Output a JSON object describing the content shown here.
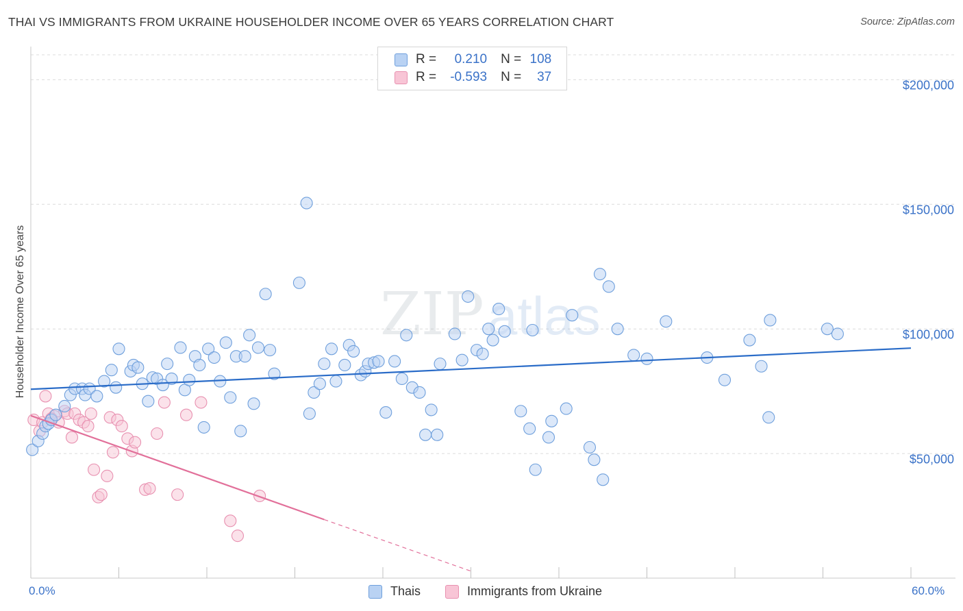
{
  "title": "THAI VS IMMIGRANTS FROM UKRAINE HOUSEHOLDER INCOME OVER 65 YEARS CORRELATION CHART",
  "source": "Source: ZipAtlas.com",
  "watermark": {
    "zip": "ZIP",
    "atlas": "atlas"
  },
  "legend": {
    "r_label": "R =",
    "n_label": "N =",
    "rows": [
      {
        "r": "0.210",
        "n": "108",
        "fill": "#b9d2f3",
        "stroke": "#6e9fdc"
      },
      {
        "r": "-0.593",
        "n": "37",
        "fill": "#f8c5d6",
        "stroke": "#e890b0"
      }
    ]
  },
  "series_legend": [
    {
      "label": "Thais",
      "fill": "#b9d2f3",
      "stroke": "#6e9fdc"
    },
    {
      "label": "Immigrants from Ukraine",
      "fill": "#f8c5d6",
      "stroke": "#e890b0"
    }
  ],
  "chart_data": {
    "type": "scatter",
    "title": "THAI VS IMMIGRANTS FROM UKRAINE HOUSEHOLDER INCOME OVER 65 YEARS CORRELATION CHART",
    "xlabel": "",
    "ylabel": "Householder Income Over 65 years",
    "xlim": [
      0,
      60
    ],
    "ylim": [
      0,
      210000
    ],
    "x_tick_labels": [
      "0.0%",
      "60.0%"
    ],
    "y_ticks": [
      {
        "value": 50000,
        "label": "$50,000"
      },
      {
        "value": 100000,
        "label": "$100,000"
      },
      {
        "value": 150000,
        "label": "$150,000"
      },
      {
        "value": 200000,
        "label": "$200,000"
      }
    ],
    "grid": true,
    "colors": {
      "thais": "#6e9fdc",
      "thais_line": "#2a6cc8",
      "ukraine": "#e890b0",
      "ukraine_line": "#e2709a"
    },
    "series": [
      {
        "name": "Thais",
        "r": 0.21,
        "n": 108,
        "trend": {
          "x0": 0,
          "y0": 75800,
          "x1": 60,
          "y1": 92300
        },
        "points": [
          [
            0.1,
            51500
          ],
          [
            0.5,
            55000
          ],
          [
            0.8,
            58000
          ],
          [
            1.0,
            61000
          ],
          [
            1.2,
            62000
          ],
          [
            1.4,
            63500
          ],
          [
            1.7,
            65500
          ],
          [
            2.3,
            69000
          ],
          [
            2.7,
            73500
          ],
          [
            3.0,
            76000
          ],
          [
            3.5,
            76000
          ],
          [
            3.7,
            73500
          ],
          [
            4.0,
            76000
          ],
          [
            4.5,
            73000
          ],
          [
            5.0,
            79000
          ],
          [
            5.5,
            83500
          ],
          [
            5.8,
            76500
          ],
          [
            6.0,
            92000
          ],
          [
            6.8,
            83000
          ],
          [
            7.0,
            85500
          ],
          [
            7.3,
            84500
          ],
          [
            7.6,
            78000
          ],
          [
            8.0,
            71000
          ],
          [
            8.3,
            80500
          ],
          [
            8.6,
            80000
          ],
          [
            9.0,
            77500
          ],
          [
            9.3,
            86000
          ],
          [
            9.6,
            80000
          ],
          [
            10.2,
            92500
          ],
          [
            10.5,
            75500
          ],
          [
            10.8,
            79500
          ],
          [
            11.2,
            89000
          ],
          [
            11.5,
            85500
          ],
          [
            11.8,
            60500
          ],
          [
            12.1,
            92000
          ],
          [
            12.5,
            88500
          ],
          [
            12.9,
            79000
          ],
          [
            13.3,
            94500
          ],
          [
            13.6,
            72500
          ],
          [
            14.0,
            89000
          ],
          [
            14.3,
            59000
          ],
          [
            14.6,
            89000
          ],
          [
            14.9,
            97500
          ],
          [
            15.2,
            70000
          ],
          [
            15.5,
            92500
          ],
          [
            16.0,
            114000
          ],
          [
            16.3,
            91500
          ],
          [
            16.6,
            82000
          ],
          [
            18.3,
            118500
          ],
          [
            18.8,
            150500
          ],
          [
            19.0,
            66000
          ],
          [
            19.3,
            74500
          ],
          [
            19.7,
            78000
          ],
          [
            20.0,
            86000
          ],
          [
            20.5,
            92000
          ],
          [
            20.8,
            79000
          ],
          [
            21.4,
            85500
          ],
          [
            21.7,
            93500
          ],
          [
            22.0,
            91000
          ],
          [
            22.5,
            81500
          ],
          [
            22.8,
            83000
          ],
          [
            23.0,
            86000
          ],
          [
            23.4,
            86500
          ],
          [
            23.7,
            87000
          ],
          [
            24.2,
            66500
          ],
          [
            24.8,
            87000
          ],
          [
            25.3,
            80000
          ],
          [
            25.6,
            97500
          ],
          [
            26.0,
            76500
          ],
          [
            26.5,
            74500
          ],
          [
            26.9,
            57500
          ],
          [
            27.3,
            67500
          ],
          [
            27.7,
            57500
          ],
          [
            27.9,
            86000
          ],
          [
            28.9,
            98000
          ],
          [
            29.4,
            87500
          ],
          [
            29.8,
            113000
          ],
          [
            30.4,
            91500
          ],
          [
            30.8,
            90000
          ],
          [
            31.2,
            100000
          ],
          [
            31.5,
            95500
          ],
          [
            31.9,
            108000
          ],
          [
            32.3,
            99000
          ],
          [
            33.4,
            67000
          ],
          [
            34.0,
            60000
          ],
          [
            34.2,
            99500
          ],
          [
            34.4,
            43500
          ],
          [
            35.3,
            56500
          ],
          [
            35.5,
            63000
          ],
          [
            36.5,
            68000
          ],
          [
            36.9,
            105500
          ],
          [
            38.1,
            52500
          ],
          [
            38.4,
            47500
          ],
          [
            38.8,
            122000
          ],
          [
            39.0,
            39500
          ],
          [
            39.4,
            117000
          ],
          [
            40.0,
            100000
          ],
          [
            41.1,
            89500
          ],
          [
            42.0,
            88000
          ],
          [
            43.3,
            103000
          ],
          [
            46.1,
            88500
          ],
          [
            47.3,
            79500
          ],
          [
            49.0,
            95500
          ],
          [
            49.8,
            85000
          ],
          [
            50.3,
            64500
          ],
          [
            50.4,
            103500
          ],
          [
            54.3,
            100000
          ],
          [
            55.0,
            98000
          ]
        ]
      },
      {
        "name": "Immigrants from Ukraine",
        "r": -0.593,
        "n": 37,
        "trend": {
          "x0": 0,
          "y0": 65200,
          "x1": 20.0,
          "y1": 23500,
          "dash_to_x": 30.0,
          "dash_to_y": 2800
        },
        "points": [
          [
            0.2,
            63500
          ],
          [
            0.6,
            59000
          ],
          [
            0.8,
            62500
          ],
          [
            1.0,
            73000
          ],
          [
            1.2,
            66000
          ],
          [
            1.6,
            65000
          ],
          [
            1.9,
            62500
          ],
          [
            2.3,
            67000
          ],
          [
            2.5,
            66000
          ],
          [
            2.8,
            56500
          ],
          [
            3.0,
            66000
          ],
          [
            3.3,
            63500
          ],
          [
            3.6,
            62500
          ],
          [
            3.9,
            61000
          ],
          [
            4.1,
            66000
          ],
          [
            4.3,
            43500
          ],
          [
            4.6,
            32500
          ],
          [
            4.8,
            33500
          ],
          [
            5.2,
            41000
          ],
          [
            5.4,
            64500
          ],
          [
            5.6,
            50500
          ],
          [
            5.9,
            63500
          ],
          [
            6.2,
            61000
          ],
          [
            6.6,
            56000
          ],
          [
            6.9,
            51000
          ],
          [
            7.1,
            54500
          ],
          [
            7.8,
            35500
          ],
          [
            8.1,
            36000
          ],
          [
            8.6,
            58000
          ],
          [
            9.1,
            70500
          ],
          [
            10.0,
            33500
          ],
          [
            10.6,
            65500
          ],
          [
            11.6,
            70500
          ],
          [
            13.6,
            23000
          ],
          [
            14.1,
            17000
          ],
          [
            15.6,
            33000
          ],
          [
            1.4,
            64000
          ]
        ]
      }
    ]
  }
}
